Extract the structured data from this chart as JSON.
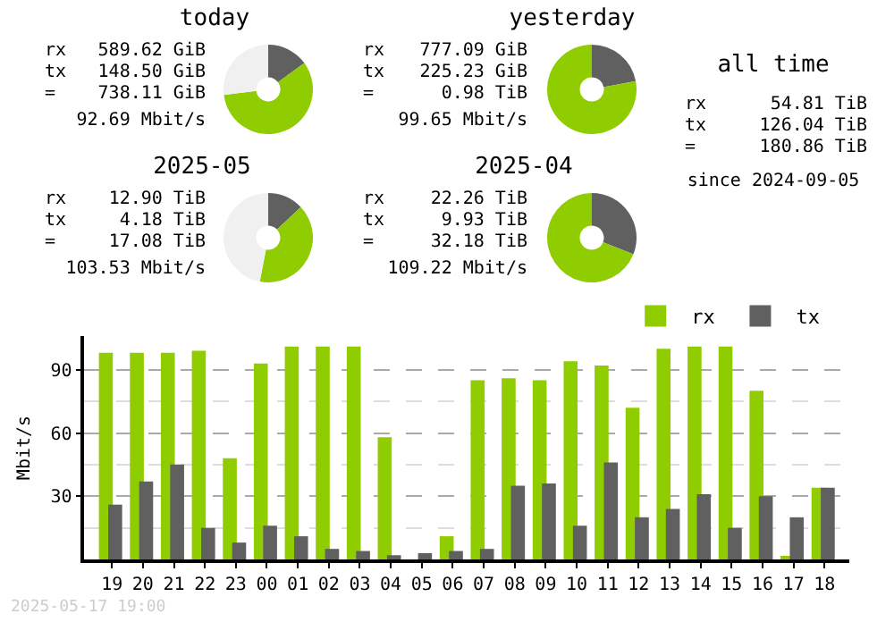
{
  "chart_data": [
    {
      "type": "donut",
      "title": "today",
      "categories": [
        null,
        null,
        null
      ],
      "values": [
        15,
        58,
        27
      ],
      "colors": [
        "#606060",
        "#8fcc00",
        "#f0f0f0"
      ],
      "annotations": [
        "rx",
        "589.62 GiB",
        "tx",
        "148.50 GiB",
        "=",
        "738.11 GiB",
        "92.69 Mbit/s"
      ]
    },
    {
      "type": "donut",
      "title": "yesterday",
      "categories": [
        null,
        null
      ],
      "values": [
        22,
        78
      ],
      "colors": [
        "#606060",
        "#8fcc00"
      ],
      "annotations": [
        "rx",
        "777.09 GiB",
        "tx",
        "225.23 GiB",
        "=",
        "0.98 TiB",
        "99.65 Mbit/s"
      ]
    },
    {
      "type": "donut",
      "title": "2025-05",
      "categories": [
        null,
        null,
        null
      ],
      "values": [
        13,
        40,
        47
      ],
      "colors": [
        "#606060",
        "#8fcc00",
        "#f0f0f0"
      ],
      "annotations": [
        "rx",
        "12.90 TiB",
        "tx",
        "4.18 TiB",
        "=",
        "17.08 TiB",
        "103.53 Mbit/s"
      ]
    },
    {
      "type": "donut",
      "title": "2025-04",
      "categories": [
        null,
        null
      ],
      "values": [
        31,
        69
      ],
      "colors": [
        "#606060",
        "#8fcc00"
      ],
      "annotations": [
        "rx",
        "22.26 TiB",
        "tx",
        "9.93 TiB",
        "=",
        "32.18 TiB",
        "109.22 Mbit/s"
      ]
    },
    {
      "type": "other",
      "title": "all time",
      "annotations": [
        "rx",
        "54.81 TiB",
        "tx",
        "126.04 TiB",
        "=",
        "180.86 TiB",
        "since 2024-09-05"
      ]
    },
    {
      "type": "bar",
      "ylabel": "Mbit/s",
      "categories": [
        "19",
        "20",
        "21",
        "22",
        "23",
        "00",
        "01",
        "02",
        "03",
        "04",
        "05",
        "06",
        "07",
        "08",
        "09",
        "10",
        "11",
        "12",
        "13",
        "14",
        "15",
        "16",
        "17",
        "18"
      ],
      "series": [
        {
          "name": "rx",
          "color": "#8fcc00",
          "values": [
            98,
            98,
            98,
            99,
            48,
            93,
            101,
            101,
            101,
            58,
            0,
            11,
            85,
            86,
            85,
            94,
            92,
            72,
            100,
            101,
            101,
            80,
            1,
            34
          ]
        },
        {
          "name": "tx",
          "color": "#606060",
          "values": [
            26,
            37,
            45,
            15,
            8,
            16,
            11,
            5,
            4,
            2,
            3,
            4,
            5,
            35,
            36,
            16,
            46,
            20,
            24,
            31,
            15,
            30,
            20,
            34
          ]
        }
      ],
      "ylim": [
        0,
        106
      ],
      "yticks": [
        {
          "value": 15,
          "label": null
        },
        30,
        {
          "value": 45,
          "label": null
        },
        60,
        {
          "value": 75,
          "label": null
        },
        90
      ],
      "grid": "y",
      "legend": "top right",
      "annotations": [
        "2025-05-17 19:00"
      ]
    }
  ]
}
